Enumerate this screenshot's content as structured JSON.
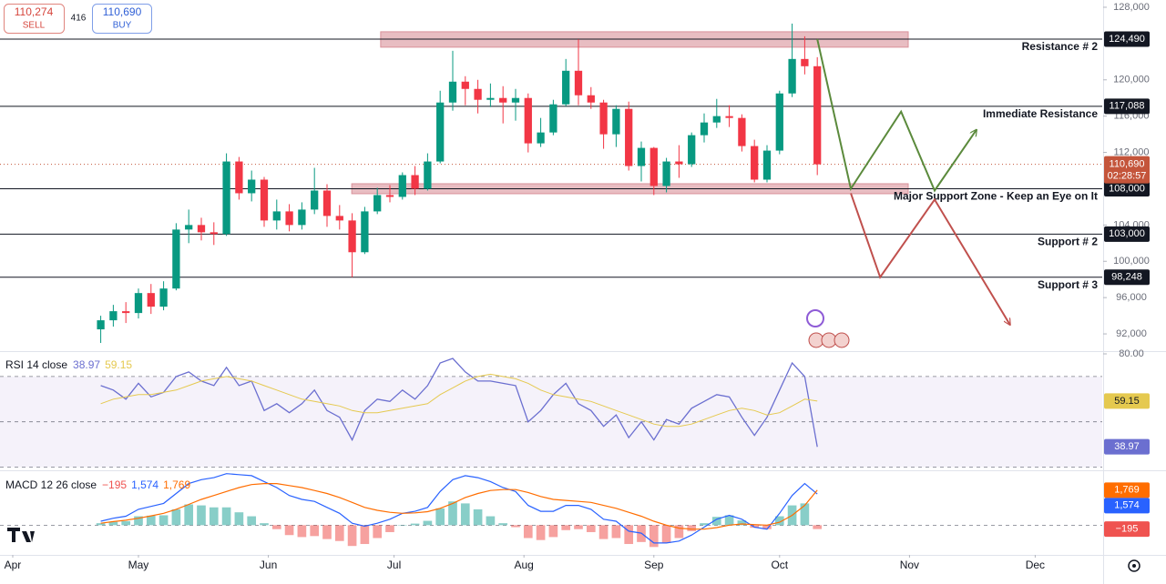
{
  "toolbar": {
    "sell_price": "110,274",
    "sell_label": "SELL",
    "spread": "416",
    "buy_price": "110,690",
    "buy_label": "BUY"
  },
  "chart_data": [
    {
      "type": "candlestick",
      "x": [
        21,
        24,
        27,
        30,
        33,
        36,
        39,
        42,
        45,
        48,
        51,
        54,
        57,
        60,
        63,
        66,
        69,
        72,
        75,
        78,
        81,
        84,
        87,
        90,
        93,
        96,
        99,
        102,
        105,
        108,
        111,
        114,
        117,
        120,
        123,
        126,
        129,
        132,
        135,
        138,
        141,
        144,
        147,
        150,
        153,
        156,
        159,
        162,
        165,
        168,
        171,
        174,
        177,
        180,
        183,
        186,
        189,
        192
      ],
      "open": [
        92500,
        93500,
        94500,
        94300,
        96500,
        95000,
        97000,
        103500,
        104000,
        103200,
        103000,
        111000,
        107500,
        109000,
        104500,
        105500,
        104000,
        105700,
        107800,
        105000,
        104500,
        101000,
        105500,
        107300,
        107100,
        109500,
        108000,
        111000,
        117500,
        119800,
        119000,
        117800,
        118000,
        117500,
        118000,
        113000,
        114200,
        117300,
        121000,
        118300,
        117500,
        114000,
        116800,
        110500,
        112500,
        108300,
        111000,
        110700,
        113900,
        115300,
        116000,
        115800,
        112700,
        109000,
        112200,
        118500,
        122300,
        121500
      ],
      "high": [
        94000,
        95200,
        95500,
        97000,
        97500,
        97800,
        104200,
        105700,
        104800,
        104300,
        111900,
        111500,
        110000,
        109300,
        106800,
        106300,
        106500,
        110300,
        108500,
        106200,
        105300,
        106000,
        108100,
        108400,
        109800,
        110500,
        111900,
        118800,
        123200,
        120400,
        120000,
        119600,
        119300,
        119000,
        118500,
        115800,
        117800,
        122300,
        124474,
        119200,
        117800,
        117200,
        117600,
        113200,
        112600,
        111400,
        112800,
        114200,
        116300,
        117900,
        117200,
        116200,
        113400,
        112800,
        118800,
        126200,
        124800,
        122500
      ],
      "low": [
        91000,
        92800,
        93200,
        93700,
        94200,
        94600,
        96800,
        102000,
        102300,
        101800,
        102800,
        106800,
        106600,
        103800,
        103500,
        103300,
        103500,
        105200,
        103800,
        103500,
        98248,
        100800,
        105200,
        106500,
        106800,
        107300,
        107800,
        110800,
        116600,
        117200,
        116300,
        117000,
        115200,
        115500,
        112000,
        112600,
        113900,
        117100,
        117200,
        116800,
        112400,
        112600,
        110000,
        108800,
        107300,
        107600,
        109200,
        110400,
        113100,
        114700,
        114800,
        112100,
        108700,
        108700,
        111800,
        118100,
        120600,
        109500
      ],
      "close": [
        93500,
        94500,
        94300,
        96500,
        95000,
        97000,
        103500,
        104000,
        103200,
        103000,
        111000,
        107500,
        109000,
        104500,
        105500,
        104000,
        105700,
        107800,
        105000,
        104500,
        101000,
        105500,
        107300,
        107100,
        109500,
        108000,
        111000,
        117500,
        119800,
        119000,
        117800,
        118000,
        117500,
        118000,
        113000,
        114200,
        117300,
        121000,
        118300,
        117500,
        114000,
        116800,
        110500,
        112500,
        108300,
        111000,
        110700,
        113900,
        115300,
        116000,
        115800,
        112700,
        109000,
        112200,
        118500,
        122300,
        121500,
        110690
      ],
      "up_color": "#089981",
      "down_color": "#f23645",
      "xlim": [
        -3.04,
        260
      ],
      "xticks": [
        {
          "value": 0,
          "label": "Apr"
        },
        {
          "value": 30,
          "label": "May"
        },
        {
          "value": 61,
          "label": "Jun"
        },
        {
          "value": 91,
          "label": "Jul"
        },
        {
          "value": 122,
          "label": "Aug"
        },
        {
          "value": 153,
          "label": "Sep"
        },
        {
          "value": 183,
          "label": "Oct"
        },
        {
          "value": 214,
          "label": "Nov"
        },
        {
          "value": 244,
          "label": "Dec"
        }
      ],
      "ylim": [
        90200,
        128800
      ],
      "yticks": [
        {
          "value": 128000,
          "label": "128,000"
        },
        {
          "value": 120000,
          "label": "120,000"
        },
        {
          "value": 116000,
          "label": "116,000"
        },
        {
          "value": 112000,
          "label": "112,000"
        },
        {
          "value": 104000,
          "label": "104,000"
        },
        {
          "value": 100000,
          "label": "100,000"
        },
        {
          "value": 96000,
          "label": "96,000"
        },
        {
          "value": 92000,
          "label": "92,000"
        }
      ],
      "levels": [
        {
          "name": "Resistance # 2",
          "value": 124490,
          "label": "124,490"
        },
        {
          "name": "Immediate Resistance",
          "value": 117088,
          "label": "117,088"
        },
        {
          "name": "Major Support Zone - Keep an Eye on It",
          "value": 108000,
          "label": "108,000"
        },
        {
          "name": "Support # 2",
          "value": 103000,
          "label": "103,000"
        },
        {
          "name": "Support # 3",
          "value": 98248,
          "label": "98,248"
        }
      ],
      "level_color": "#131722",
      "zones": [
        {
          "x": [
            87.8,
            213.7
          ],
          "y": [
            123600,
            125300
          ]
        },
        {
          "x": [
            80.9,
            213.7
          ],
          "y": [
            107450,
            108550
          ]
        }
      ],
      "zone_color": "#d9919a",
      "projections": [
        {
          "color": "#5b8a3c",
          "x": [
            192,
            200,
            212,
            220,
            230
          ],
          "y": [
            124490,
            108000,
            116500,
            107800,
            114500
          ]
        },
        {
          "color": "#c0504d",
          "x": [
            200,
            207,
            220,
            238
          ],
          "y": [
            107500,
            98248,
            106800,
            93000
          ]
        }
      ],
      "last_price": {
        "value": 110690,
        "label": "110,690"
      },
      "countdown": "02:28:57",
      "last_price_color": "#c4553b"
    },
    {
      "type": "line",
      "title": "RSI 14 close",
      "ylim": [
        29,
        80.4
      ],
      "yticks": [
        {
          "value": 80,
          "label": "80.00"
        }
      ],
      "levels": [
        30,
        50,
        70
      ],
      "band_color": "#7e57c2",
      "series": [
        {
          "color": "#6b6fd0",
          "values": [
            66,
            64,
            60,
            67,
            61,
            63,
            70,
            72,
            68,
            66,
            74,
            66,
            68,
            55,
            58,
            54,
            58,
            64,
            55,
            52,
            42,
            55,
            60,
            59,
            64,
            60,
            66,
            76,
            78,
            72,
            68,
            68,
            67,
            66,
            50,
            55,
            62,
            67,
            58,
            55,
            48,
            53,
            43,
            50,
            42,
            51,
            49,
            56,
            59,
            62,
            61,
            52,
            44,
            52,
            64,
            76,
            70,
            38.97
          ]
        },
        {
          "color": "#e5c94f",
          "values": [
            58,
            60,
            61,
            62,
            62,
            63,
            64,
            66,
            68,
            69,
            70,
            69,
            68,
            66,
            64,
            62,
            60,
            59,
            58,
            57,
            55,
            54,
            54,
            55,
            56,
            57,
            58,
            62,
            65,
            68,
            70,
            71,
            70,
            69,
            67,
            64,
            62,
            61,
            60,
            59,
            57,
            55,
            53,
            51,
            49,
            48,
            48,
            49,
            51,
            53,
            55,
            56,
            55,
            53,
            54,
            57,
            60,
            59.15
          ]
        }
      ]
    },
    {
      "type": "macd",
      "title": "MACD 12 26 close",
      "ylim": [
        -1500,
        2680
      ],
      "levels": [
        0
      ],
      "histogram": {
        "up_color": "#26a69a",
        "down_color": "#ef5350",
        "last_label": "−195",
        "values": [
          100,
          170,
          200,
          450,
          480,
          500,
          800,
          1050,
          1000,
          900,
          900,
          650,
          450,
          100,
          -200,
          -500,
          -600,
          -550,
          -700,
          -800,
          -1050,
          -950,
          -650,
          -350,
          0,
          80,
          220,
          850,
          1200,
          1100,
          800,
          450,
          100,
          -100,
          -650,
          -750,
          -600,
          -250,
          -200,
          -350,
          -700,
          -650,
          -950,
          -850,
          -1100,
          -900,
          -650,
          -300,
          100,
          420,
          500,
          240,
          -130,
          -200,
          450,
          1000,
          1100,
          -195
        ]
      },
      "series": [
        {
          "color": "#2962ff",
          "last_label": "1,574",
          "values": [
            200,
            350,
            450,
            800,
            950,
            1100,
            1600,
            2100,
            2300,
            2400,
            2600,
            2550,
            2500,
            2200,
            1900,
            1500,
            1300,
            1200,
            900,
            600,
            100,
            -50,
            100,
            300,
            600,
            700,
            900,
            1700,
            2300,
            2500,
            2400,
            2200,
            1900,
            1700,
            1000,
            700,
            700,
            1000,
            1000,
            800,
            300,
            200,
            -300,
            -400,
            -900,
            -900,
            -800,
            -500,
            -100,
            300,
            500,
            300,
            -100,
            -200,
            600,
            1500,
            2100,
            1574
          ]
        },
        {
          "color": "#ff6d00",
          "last_label": "1,769",
          "values": [
            100,
            180,
            250,
            350,
            470,
            600,
            800,
            1050,
            1300,
            1500,
            1700,
            1900,
            2050,
            2100,
            2100,
            2000,
            1900,
            1750,
            1600,
            1400,
            1150,
            900,
            750,
            650,
            600,
            620,
            680,
            850,
            1100,
            1400,
            1600,
            1750,
            1800,
            1800,
            1650,
            1450,
            1300,
            1250,
            1200,
            1150,
            1000,
            850,
            650,
            450,
            200,
            0,
            -150,
            -200,
            -200,
            -120,
            0,
            60,
            30,
            0,
            150,
            500,
            1000,
            1769
          ]
        }
      ]
    }
  ]
}
